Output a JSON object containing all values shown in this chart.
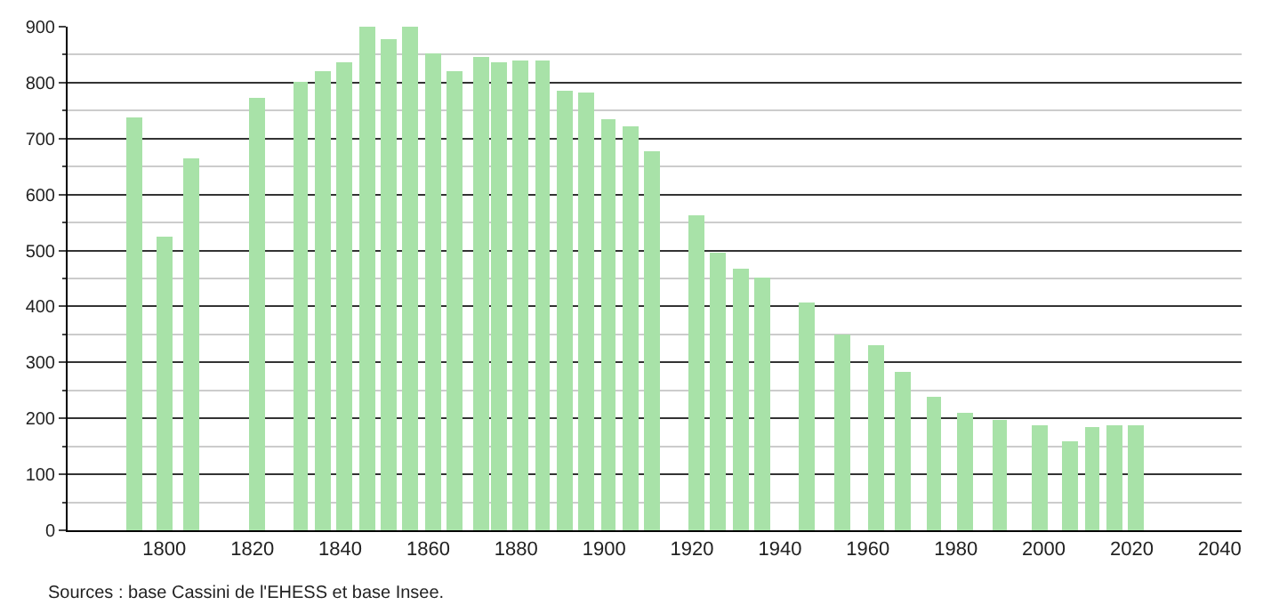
{
  "chart_data": {
    "type": "bar",
    "x": [
      1793,
      1800,
      1806,
      1821,
      1831,
      1836,
      1841,
      1846,
      1851,
      1856,
      1861,
      1866,
      1872,
      1876,
      1881,
      1886,
      1891,
      1896,
      1901,
      1906,
      1911,
      1921,
      1926,
      1931,
      1936,
      1946,
      1954,
      1962,
      1968,
      1975,
      1982,
      1990,
      1999,
      2006,
      2011,
      2016,
      2021
    ],
    "values": [
      738,
      526,
      666,
      772,
      800,
      822,
      835,
      900,
      878,
      900,
      853,
      819,
      847,
      838,
      841,
      841,
      785,
      782,
      735,
      722,
      676,
      564,
      495,
      467,
      451,
      408,
      349,
      330,
      283,
      240,
      209,
      196,
      187,
      159,
      184,
      187,
      187
    ],
    "color": "#a8e2a8",
    "xlim": [
      1778,
      2045
    ],
    "xticks": [
      1800,
      1820,
      1840,
      1860,
      1880,
      1900,
      1920,
      1940,
      1960,
      1980,
      2000,
      2020,
      2040
    ],
    "ylim": [
      0,
      900
    ],
    "yticks": [
      0,
      100,
      200,
      300,
      400,
      500,
      600,
      700,
      800,
      900
    ],
    "grid": "y",
    "annotations": [
      "Sources : base Cassini de l'EHESS et base Insee."
    ]
  }
}
